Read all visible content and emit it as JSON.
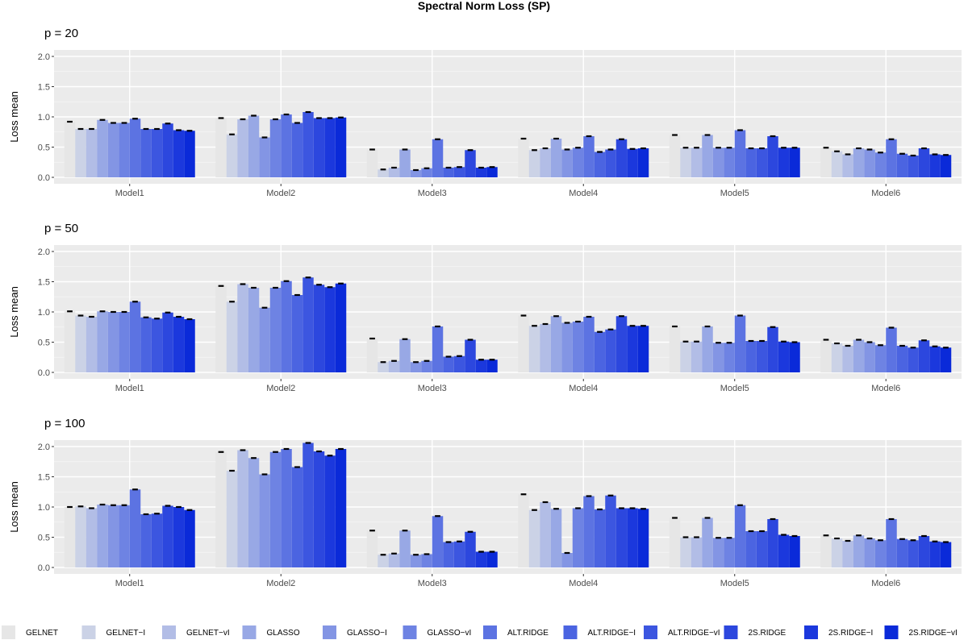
{
  "chart_data": {
    "type": "bar",
    "title": "Spectral Norm Loss (SP)",
    "ylabel": "Loss mean",
    "xlabel": "",
    "ylim": [
      0,
      2.0
    ],
    "yticks": [
      "0.0",
      "0.5",
      "1.0",
      "1.5",
      "2.0"
    ],
    "categories": [
      "Model1",
      "Model2",
      "Model3",
      "Model4",
      "Model5",
      "Model6"
    ],
    "methods": [
      "GELNET",
      "GELNET−I",
      "GELNET−vI",
      "GLASSO",
      "GLASSO−I",
      "GLASSO−vI",
      "ALT.RIDGE",
      "ALT.RIDGE−I",
      "ALT.RIDGE−vI",
      "2S.RIDGE",
      "2S.RIDGE−I",
      "2S.RIDGE−vI"
    ],
    "colors": [
      "#e6e6e6",
      "#cbd2e6",
      "#b2bde6",
      "#98a8e5",
      "#8395e4",
      "#6e83e3",
      "#5c73e2",
      "#4b64e1",
      "#3c56e0",
      "#2c47de",
      "#1b38dd",
      "#0a2ad9"
    ],
    "panels": [
      {
        "title": "p = 20",
        "values": [
          [
            0.92,
            0.8,
            0.8,
            0.95,
            0.9,
            0.9,
            0.97,
            0.8,
            0.8,
            0.89,
            0.78,
            0.77
          ],
          [
            0.98,
            0.71,
            0.96,
            1.02,
            0.66,
            0.96,
            1.04,
            0.9,
            1.08,
            0.98,
            0.98,
            0.99
          ],
          [
            0.46,
            0.13,
            0.16,
            0.46,
            0.12,
            0.15,
            0.63,
            0.16,
            0.17,
            0.45,
            0.16,
            0.17
          ],
          [
            0.64,
            0.45,
            0.48,
            0.64,
            0.46,
            0.49,
            0.68,
            0.42,
            0.46,
            0.63,
            0.47,
            0.48
          ],
          [
            0.7,
            0.49,
            0.49,
            0.7,
            0.49,
            0.49,
            0.78,
            0.48,
            0.48,
            0.68,
            0.49,
            0.49
          ],
          [
            0.49,
            0.43,
            0.38,
            0.48,
            0.46,
            0.41,
            0.63,
            0.39,
            0.36,
            0.48,
            0.38,
            0.37
          ]
        ]
      },
      {
        "title": "p = 50",
        "values": [
          [
            1.01,
            0.94,
            0.92,
            1.01,
            1.0,
            1.0,
            1.17,
            0.91,
            0.89,
            0.99,
            0.92,
            0.88
          ],
          [
            1.43,
            1.17,
            1.46,
            1.4,
            1.07,
            1.4,
            1.51,
            1.28,
            1.57,
            1.45,
            1.41,
            1.47
          ],
          [
            0.56,
            0.17,
            0.19,
            0.55,
            0.17,
            0.19,
            0.76,
            0.26,
            0.27,
            0.54,
            0.21,
            0.21
          ],
          [
            0.94,
            0.77,
            0.8,
            0.93,
            0.82,
            0.84,
            0.92,
            0.67,
            0.71,
            0.93,
            0.77,
            0.77
          ],
          [
            0.76,
            0.51,
            0.51,
            0.76,
            0.49,
            0.49,
            0.94,
            0.52,
            0.52,
            0.75,
            0.51,
            0.5
          ],
          [
            0.54,
            0.48,
            0.44,
            0.54,
            0.5,
            0.45,
            0.74,
            0.44,
            0.41,
            0.53,
            0.43,
            0.41
          ]
        ]
      },
      {
        "title": "p = 100",
        "values": [
          [
            1.0,
            1.01,
            0.98,
            1.04,
            1.03,
            1.03,
            1.29,
            0.88,
            0.89,
            1.02,
            1.0,
            0.95
          ],
          [
            1.91,
            1.6,
            1.94,
            1.81,
            1.54,
            1.91,
            1.96,
            1.66,
            2.06,
            1.92,
            1.85,
            1.96
          ],
          [
            0.61,
            0.21,
            0.23,
            0.61,
            0.21,
            0.22,
            0.85,
            0.42,
            0.43,
            0.59,
            0.26,
            0.26
          ],
          [
            1.21,
            0.95,
            1.08,
            0.97,
            0.24,
            0.98,
            1.18,
            0.96,
            1.19,
            0.98,
            0.98,
            0.97
          ],
          [
            0.82,
            0.5,
            0.5,
            0.82,
            0.49,
            0.49,
            1.03,
            0.6,
            0.6,
            0.8,
            0.54,
            0.52
          ],
          [
            0.53,
            0.48,
            0.44,
            0.53,
            0.48,
            0.45,
            0.8,
            0.47,
            0.45,
            0.52,
            0.43,
            0.42
          ]
        ]
      }
    ],
    "legend_position": "bottom"
  }
}
